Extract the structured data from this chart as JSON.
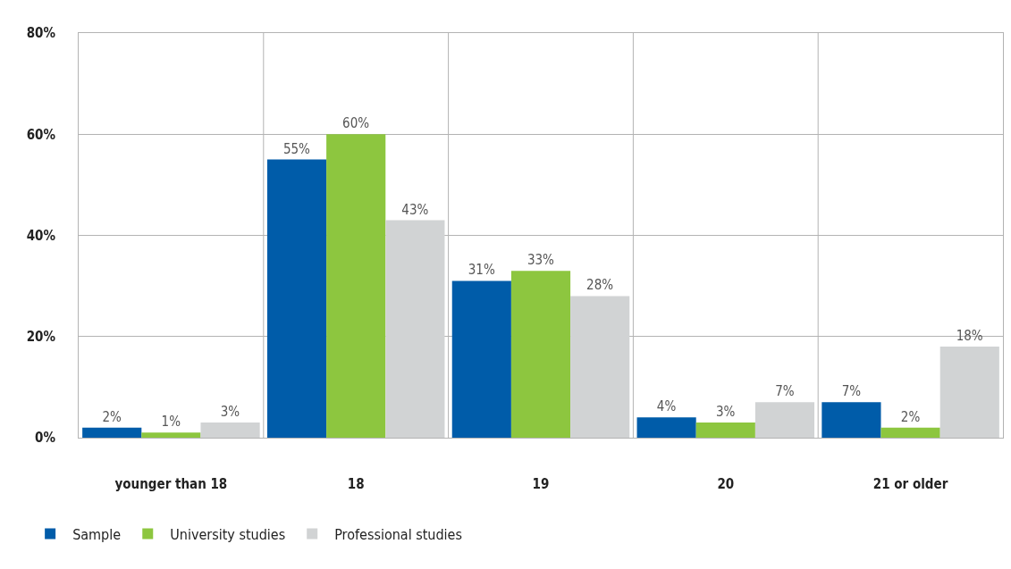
{
  "chart_data": {
    "type": "bar",
    "categories": [
      "younger than 18",
      "18",
      "19",
      "20",
      "21 or older"
    ],
    "series": [
      {
        "name": "Sample",
        "color": "#005ca9",
        "values": [
          2,
          55,
          31,
          4,
          7
        ],
        "value_labels": [
          "2%",
          "55%",
          "31%",
          "4%",
          "7%"
        ]
      },
      {
        "name": "University studies",
        "color": "#8dc63f",
        "values": [
          1,
          60,
          33,
          3,
          2
        ],
        "value_labels": [
          "1%",
          "60%",
          "33%",
          "3%",
          "2%"
        ]
      },
      {
        "name": "Professional studies",
        "color": "#d1d3d4",
        "values": [
          3,
          43,
          28,
          7,
          18
        ],
        "value_labels": [
          "3%",
          "43%",
          "28%",
          "7%",
          "18%"
        ]
      }
    ],
    "ylim": [
      0,
      80
    ],
    "yticks": [
      {
        "value": 0,
        "label": "0%"
      },
      {
        "value": 20,
        "label": "20%"
      },
      {
        "value": 40,
        "label": "40%"
      },
      {
        "value": 60,
        "label": "60%"
      },
      {
        "value": 80,
        "label": "80%"
      }
    ],
    "grid": true,
    "legend": "bottom left"
  }
}
